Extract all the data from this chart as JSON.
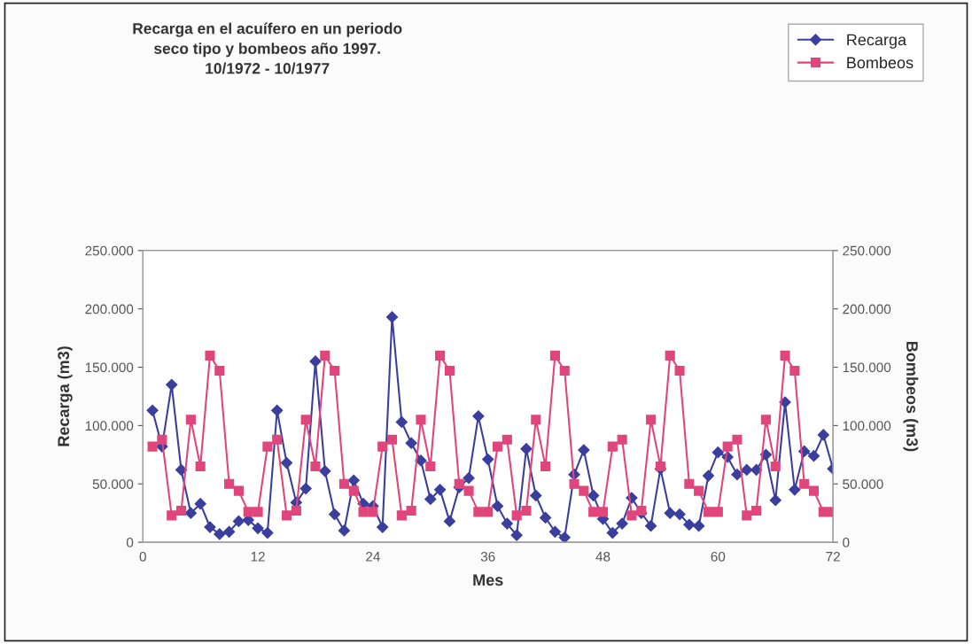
{
  "chart_data": {
    "type": "line",
    "title": "Recarga en el acuífero en un periodo\nseco tipo y bombeos año 1997.\n10/1972 - 10/1977",
    "xlabel": "Mes",
    "ylabel": "Recarga (m3)",
    "y2label": "Bombeos (m3)",
    "x": [
      1,
      2,
      3,
      4,
      5,
      6,
      7,
      8,
      9,
      10,
      11,
      12,
      13,
      14,
      15,
      16,
      17,
      18,
      19,
      20,
      21,
      22,
      23,
      24,
      25,
      26,
      27,
      28,
      29,
      30,
      31,
      32,
      33,
      34,
      35,
      36,
      37,
      38,
      39,
      40,
      41,
      42,
      43,
      44,
      45,
      46,
      47,
      48,
      49,
      50,
      51,
      52,
      53,
      54,
      55,
      56,
      57,
      58,
      59,
      60,
      61,
      62,
      63,
      64,
      65,
      66,
      67,
      68,
      69,
      70,
      71,
      72
    ],
    "series": [
      {
        "name": "Recarga",
        "color": "#3a3f9e",
        "marker": "diamond",
        "values": [
          113000,
          82000,
          135000,
          62000,
          25000,
          33000,
          13000,
          7000,
          9000,
          18000,
          19000,
          12000,
          8000,
          113000,
          68000,
          34000,
          46000,
          155000,
          61000,
          24000,
          10000,
          53000,
          33000,
          31000,
          13000,
          193000,
          103000,
          85000,
          70000,
          37000,
          45000,
          18000,
          47000,
          55000,
          108000,
          71000,
          31000,
          16000,
          6000,
          80000,
          40000,
          21000,
          9000,
          4000,
          58000,
          79000,
          40000,
          20000,
          8000,
          16000,
          38000,
          25000,
          14000,
          63000,
          25000,
          24000,
          15000,
          14000,
          57000,
          77000,
          73000,
          58000,
          62000,
          62000,
          75000,
          36000,
          120000,
          45000,
          78000,
          74000,
          92000,
          63000
        ]
      },
      {
        "name": "Bombeos",
        "color": "#e0457b",
        "marker": "square",
        "axis": "y2",
        "values": [
          82000,
          88000,
          23000,
          27000,
          105000,
          65000,
          160000,
          147000,
          50000,
          44000,
          26000,
          26000,
          82000,
          88000,
          23000,
          27000,
          105000,
          65000,
          160000,
          147000,
          50000,
          44000,
          26000,
          26000,
          82000,
          88000,
          23000,
          27000,
          105000,
          65000,
          160000,
          147000,
          50000,
          44000,
          26000,
          26000,
          82000,
          88000,
          23000,
          27000,
          105000,
          65000,
          160000,
          147000,
          50000,
          44000,
          26000,
          26000,
          82000,
          88000,
          23000,
          27000,
          105000,
          65000,
          160000,
          147000,
          50000,
          44000,
          26000,
          26000,
          82000,
          88000,
          23000,
          27000,
          105000,
          65000,
          160000,
          147000,
          50000,
          44000,
          26000,
          26000
        ]
      }
    ],
    "xlim": [
      0,
      72
    ],
    "xticks": [
      0,
      12,
      24,
      36,
      48,
      60,
      72
    ],
    "ylim": [
      0,
      250000
    ],
    "yticks": [
      {
        "value": 0,
        "label": "0"
      },
      {
        "value": 50000,
        "label": "50.000"
      },
      {
        "value": 100000,
        "label": "100.000"
      },
      {
        "value": 150000,
        "label": "150.000"
      },
      {
        "value": 200000,
        "label": "200.000"
      },
      {
        "value": 250000,
        "label": "250.000"
      }
    ],
    "y2lim": [
      0,
      250000
    ],
    "y2ticks": [
      {
        "value": 0,
        "label": "0"
      },
      {
        "value": 50000,
        "label": "50.000"
      },
      {
        "value": 100000,
        "label": "100.000"
      },
      {
        "value": 150000,
        "label": "150.000"
      },
      {
        "value": 200000,
        "label": "200.000"
      },
      {
        "value": 250000,
        "label": "250.000"
      }
    ],
    "grid": false,
    "legend": "top right",
    "line_style": "solid"
  }
}
